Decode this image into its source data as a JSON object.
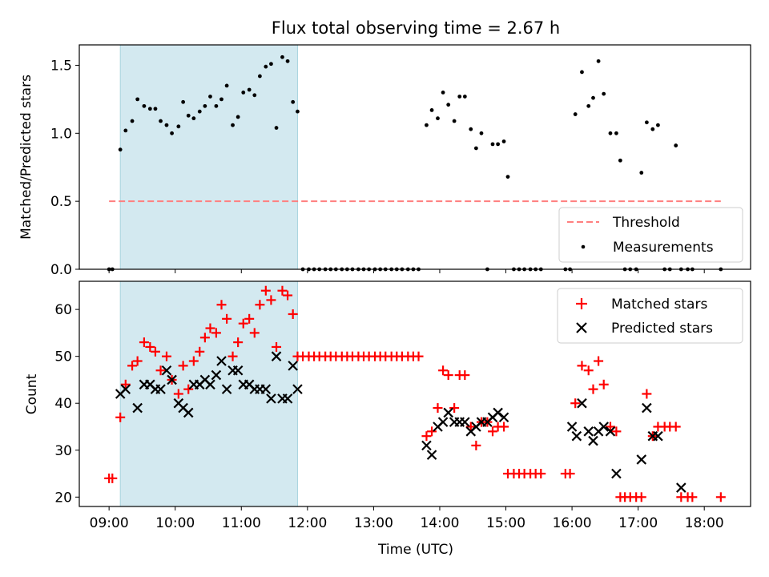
{
  "figure": {
    "title": "Flux total observing time = 2.67 h",
    "xlabel": "Time (UTC)",
    "xtick_labels": [
      "09:00",
      "10:00",
      "11:00",
      "12:00",
      "13:00",
      "14:00",
      "15:00",
      "16:00",
      "17:00",
      "18:00"
    ],
    "xticks_hours": [
      9,
      10,
      11,
      12,
      13,
      14,
      15,
      16,
      17,
      18
    ],
    "xlim_hours": [
      8.55,
      18.7
    ],
    "shaded_span_hours": [
      9.17,
      11.85
    ],
    "shade_color": "#d3e9f0",
    "shade_edge": "#a8d4de"
  },
  "chart_data": [
    {
      "type": "scatter",
      "ylabel": "Matched/Predicted stars",
      "ylim": [
        0,
        1.65
      ],
      "yticks": [
        0.0,
        0.5,
        1.0,
        1.5
      ],
      "ytick_labels": [
        "0.0",
        "0.5",
        "1.0",
        "1.5"
      ],
      "legend": {
        "placement": "lower-right",
        "entries": [
          "Threshold",
          "Measurements"
        ]
      },
      "threshold": {
        "name": "Threshold",
        "value": 0.5,
        "x_range": [
          9.0,
          18.25
        ],
        "color": "#ff7f7f"
      },
      "series": [
        {
          "name": "Measurements",
          "color": "#000000",
          "x": [
            9.0,
            9.05,
            9.17,
            9.25,
            9.35,
            9.43,
            9.53,
            9.62,
            9.7,
            9.78,
            9.87,
            9.95,
            10.05,
            10.12,
            10.2,
            10.28,
            10.37,
            10.45,
            10.53,
            10.62,
            10.7,
            10.78,
            10.87,
            10.95,
            11.03,
            11.12,
            11.2,
            11.28,
            11.37,
            11.45,
            11.53,
            11.62,
            11.7,
            11.78,
            11.85,
            11.93,
            12.02,
            12.1,
            12.18,
            12.27,
            12.35,
            12.43,
            12.52,
            12.6,
            12.68,
            12.77,
            12.85,
            12.93,
            13.02,
            13.1,
            13.18,
            13.27,
            13.35,
            13.43,
            13.52,
            13.6,
            13.68,
            13.8,
            13.88,
            13.97,
            14.05,
            14.13,
            14.22,
            14.3,
            14.38,
            14.47,
            14.55,
            14.63,
            14.72,
            14.8,
            14.88,
            14.97,
            15.03,
            15.12,
            15.2,
            15.28,
            15.37,
            15.45,
            15.53,
            15.9,
            15.97,
            16.05,
            16.15,
            16.25,
            16.32,
            16.4,
            16.48,
            16.58,
            16.67,
            16.73,
            16.8,
            16.88,
            16.97,
            17.05,
            17.13,
            17.22,
            17.3,
            17.4,
            17.48,
            17.57,
            17.65,
            17.75,
            17.82,
            18.25
          ],
          "y": [
            0,
            0,
            0.88,
            1.02,
            1.09,
            1.25,
            1.2,
            1.18,
            1.18,
            1.09,
            1.06,
            1.0,
            1.05,
            1.23,
            1.13,
            1.11,
            1.16,
            1.2,
            1.27,
            1.2,
            1.25,
            1.35,
            1.06,
            1.12,
            1.3,
            1.32,
            1.28,
            1.42,
            1.49,
            1.51,
            1.04,
            1.56,
            1.53,
            1.23,
            1.16,
            0,
            0,
            0,
            0,
            0,
            0,
            0,
            0,
            0,
            0,
            0,
            0,
            0,
            0,
            0,
            0,
            0,
            0,
            0,
            0,
            0,
            0,
            1.06,
            1.17,
            1.11,
            1.3,
            1.21,
            1.09,
            1.27,
            1.27,
            1.03,
            0.89,
            1.0,
            0,
            0.92,
            0.92,
            0.94,
            0.68,
            0,
            0,
            0,
            0,
            0,
            0,
            0,
            0,
            1.14,
            1.45,
            1.2,
            1.26,
            1.53,
            1.29,
            1.0,
            1.0,
            0.8,
            0,
            0,
            0,
            0.71,
            1.08,
            1.03,
            1.06,
            0,
            0,
            0.91,
            0,
            0,
            0,
            0
          ]
        }
      ]
    },
    {
      "type": "scatter",
      "ylabel": "Count",
      "xlabel": "Time (UTC)",
      "ylim": [
        18,
        66
      ],
      "yticks": [
        20,
        30,
        40,
        50,
        60
      ],
      "ytick_labels": [
        "20",
        "30",
        "40",
        "50",
        "60"
      ],
      "legend": {
        "placement": "upper-right",
        "entries": [
          "Matched stars",
          "Predicted stars"
        ]
      },
      "series": [
        {
          "name": "Matched stars",
          "marker": "+",
          "color": "#ff0000",
          "x": [
            9.0,
            9.05,
            9.17,
            9.25,
            9.35,
            9.43,
            9.53,
            9.62,
            9.7,
            9.78,
            9.87,
            9.95,
            10.05,
            10.12,
            10.2,
            10.28,
            10.37,
            10.45,
            10.53,
            10.62,
            10.7,
            10.78,
            10.87,
            10.95,
            11.03,
            11.12,
            11.2,
            11.28,
            11.37,
            11.45,
            11.53,
            11.62,
            11.7,
            11.78,
            11.85,
            11.93,
            12.02,
            12.1,
            12.18,
            12.27,
            12.35,
            12.43,
            12.52,
            12.6,
            12.68,
            12.77,
            12.85,
            12.93,
            13.02,
            13.1,
            13.18,
            13.27,
            13.35,
            13.43,
            13.52,
            13.6,
            13.68,
            13.8,
            13.88,
            13.97,
            14.05,
            14.13,
            14.22,
            14.3,
            14.38,
            14.47,
            14.55,
            14.63,
            14.72,
            14.8,
            14.88,
            14.97,
            15.03,
            15.12,
            15.2,
            15.28,
            15.37,
            15.45,
            15.53,
            15.9,
            15.97,
            16.05,
            16.15,
            16.25,
            16.32,
            16.4,
            16.48,
            16.58,
            16.67,
            16.73,
            16.8,
            16.88,
            16.97,
            17.05,
            17.13,
            17.22,
            17.3,
            17.4,
            17.48,
            17.57,
            17.65,
            17.75,
            17.82,
            18.25
          ],
          "y": [
            24,
            24,
            37,
            44,
            48,
            49,
            53,
            52,
            51,
            47,
            50,
            45,
            42,
            48,
            43,
            49,
            51,
            54,
            56,
            55,
            61,
            58,
            50,
            53,
            57,
            58,
            55,
            61,
            64,
            62,
            52,
            64,
            63,
            59,
            50,
            50,
            50,
            50,
            50,
            50,
            50,
            50,
            50,
            50,
            50,
            50,
            50,
            50,
            50,
            50,
            50,
            50,
            50,
            50,
            50,
            50,
            50,
            33,
            34,
            39,
            47,
            46,
            39,
            46,
            46,
            35,
            31,
            36,
            36,
            34,
            35,
            35,
            25,
            25,
            25,
            25,
            25,
            25,
            25,
            25,
            25,
            40,
            48,
            47,
            43,
            49,
            44,
            35,
            34,
            20,
            20,
            20,
            20,
            20,
            42,
            33,
            35,
            35,
            35,
            35,
            20,
            20,
            20,
            20
          ]
        },
        {
          "name": "Predicted stars",
          "marker": "x",
          "color": "#000000",
          "x": [
            9.17,
            9.25,
            9.43,
            9.53,
            9.62,
            9.7,
            9.78,
            9.87,
            9.95,
            10.05,
            10.12,
            10.2,
            10.28,
            10.37,
            10.45,
            10.53,
            10.62,
            10.7,
            10.78,
            10.87,
            10.95,
            11.03,
            11.12,
            11.2,
            11.28,
            11.37,
            11.45,
            11.53,
            11.62,
            11.7,
            11.78,
            11.85,
            13.8,
            13.88,
            13.97,
            14.05,
            14.13,
            14.22,
            14.3,
            14.38,
            14.47,
            14.55,
            14.63,
            14.72,
            14.8,
            14.88,
            14.97,
            16.0,
            16.07,
            16.15,
            16.25,
            16.32,
            16.4,
            16.48,
            16.58,
            16.67,
            17.05,
            17.13,
            17.22,
            17.3,
            17.65
          ],
          "y": [
            42,
            43,
            39,
            44,
            44,
            43,
            43,
            47,
            45,
            40,
            39,
            38,
            44,
            44,
            45,
            44,
            46,
            49,
            43,
            47,
            47,
            44,
            44,
            43,
            43,
            43,
            41,
            50,
            41,
            41,
            48,
            43,
            31,
            29,
            35,
            36,
            38,
            36,
            36,
            36,
            34,
            35,
            36,
            36,
            37,
            38,
            37,
            35,
            33,
            40,
            34,
            32,
            34,
            35,
            34,
            25,
            28,
            39,
            33,
            33,
            22
          ]
        }
      ]
    }
  ]
}
